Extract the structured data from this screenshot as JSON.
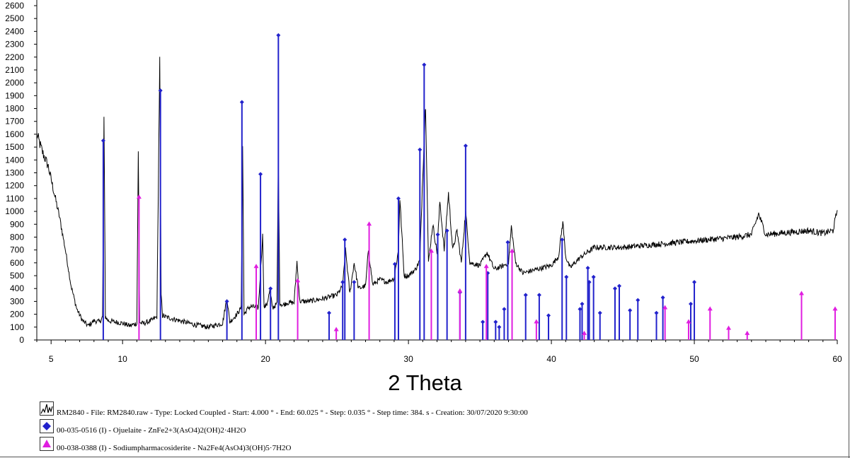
{
  "chart_data": {
    "type": "line",
    "xlabel": "2 Theta",
    "ylabel": "",
    "xlim": [
      4,
      60
    ],
    "ylim": [
      0,
      2600
    ],
    "x_ticks": [
      5,
      10,
      20,
      30,
      40,
      50,
      60
    ],
    "y_ticks": [
      0,
      100,
      200,
      300,
      400,
      500,
      600,
      700,
      800,
      900,
      1000,
      1100,
      1200,
      1300,
      1400,
      1500,
      1600,
      1700,
      1800,
      1900,
      2000,
      2100,
      2200,
      2300,
      2400,
      2500,
      2600
    ],
    "legend_placement": "bottom",
    "series": [
      {
        "name": "RM2840 - File: RM2840.raw - Type: Locked Coupled - Start: 4.000 ° - End: 60.025 ° - Step: 0.035 ° - Step time: 384. s - Creation: 30/07/2020 9:30:00",
        "color": "#000000",
        "style": "line",
        "x": [
          4.0,
          4.4,
          4.8,
          5.2,
          5.6,
          6.0,
          6.4,
          6.8,
          7.2,
          7.6,
          8.0,
          8.4,
          8.6,
          8.7,
          8.8,
          9.0,
          9.5,
          10.0,
          10.5,
          11.0,
          11.1,
          11.2,
          11.3,
          11.5,
          12.0,
          12.4,
          12.6,
          12.7,
          12.8,
          13.0,
          14.0,
          15.0,
          16.0,
          17.0,
          17.3,
          17.5,
          18.0,
          18.3,
          18.4,
          18.5,
          18.8,
          19.0,
          19.5,
          19.8,
          19.9,
          20.1,
          20.3,
          20.5,
          20.8,
          20.9,
          21.0,
          21.2,
          21.5,
          22.0,
          22.2,
          22.4,
          23.0,
          24.0,
          25.0,
          25.4,
          25.6,
          25.9,
          26.2,
          26.5,
          27.0,
          27.2,
          27.5,
          28.0,
          28.5,
          29.0,
          29.3,
          29.4,
          29.7,
          30.0,
          30.5,
          30.8,
          31.0,
          31.2,
          31.4,
          31.7,
          32.0,
          32.2,
          32.5,
          32.8,
          33.1,
          33.4,
          33.7,
          34.0,
          34.3,
          35.0,
          35.5,
          36.0,
          36.5,
          37.0,
          37.2,
          37.5,
          38.0,
          39.0,
          40.0,
          40.5,
          40.8,
          41.0,
          41.3,
          42.0,
          43.0,
          44.0,
          45.0,
          46.0,
          47.0,
          48.0,
          49.0,
          50.0,
          51.0,
          52.0,
          53.0,
          54.0,
          54.5,
          55.0,
          56.0,
          57.0,
          58.0,
          59.0,
          59.7,
          60.0
        ],
        "y": [
          1600,
          1460,
          1350,
          1150,
          950,
          700,
          420,
          240,
          150,
          110,
          150,
          140,
          180,
          1720,
          180,
          150,
          140,
          130,
          110,
          130,
          1450,
          140,
          130,
          130,
          150,
          180,
          2160,
          350,
          190,
          180,
          150,
          120,
          100,
          130,
          330,
          140,
          200,
          250,
          1520,
          200,
          250,
          260,
          250,
          810,
          250,
          280,
          380,
          250,
          280,
          1420,
          290,
          270,
          290,
          290,
          610,
          300,
          300,
          320,
          350,
          420,
          700,
          360,
          600,
          400,
          420,
          700,
          430,
          470,
          450,
          480,
          700,
          1100,
          500,
          500,
          550,
          620,
          1290,
          1850,
          600,
          900,
          680,
          1080,
          700,
          1140,
          700,
          850,
          600,
          1000,
          600,
          580,
          680,
          550,
          570,
          600,
          880,
          600,
          520,
          550,
          580,
          650,
          920,
          650,
          560,
          640,
          720,
          720,
          720,
          730,
          740,
          750,
          760,
          770,
          780,
          790,
          800,
          820,
          980,
          820,
          830,
          840,
          850,
          830,
          850,
          1010
        ]
      },
      {
        "name": "00-035-0516 (I) - Ojuelaite - ZnFe2+3(AsO4)2(OH)2·4H2O",
        "color": "#2222cc",
        "style": "stick",
        "marker": "diamond",
        "x": [
          8.65,
          12.65,
          17.3,
          18.35,
          19.65,
          20.35,
          20.9,
          24.45,
          25.4,
          25.55,
          26.2,
          29.05,
          29.3,
          30.8,
          31.1,
          32.05,
          32.7,
          33.6,
          34.0,
          35.2,
          35.55,
          36.1,
          36.35,
          36.7,
          36.95,
          38.2,
          39.15,
          39.8,
          40.75,
          41.05,
          42.0,
          42.15,
          42.55,
          42.65,
          42.95,
          43.4,
          44.45,
          44.75,
          45.5,
          46.05,
          47.35,
          47.8,
          49.75,
          50.0
        ],
        "y": [
          1550,
          1940,
          300,
          1850,
          1290,
          400,
          2370,
          210,
          450,
          780,
          450,
          590,
          1100,
          1480,
          2140,
          820,
          850,
          370,
          1510,
          140,
          520,
          140,
          100,
          240,
          760,
          350,
          350,
          190,
          780,
          490,
          240,
          280,
          560,
          450,
          490,
          210,
          400,
          420,
          230,
          310,
          210,
          330,
          280,
          450
        ]
      },
      {
        "name": "00-038-0388 (I) - Sodiumpharmacosiderite - Na2Fe4(AsO4)3(OH)5·7H2O",
        "color": "#e01ee0",
        "style": "stick",
        "marker": "triangle",
        "x": [
          11.15,
          19.35,
          22.25,
          24.95,
          27.25,
          31.6,
          33.6,
          35.45,
          37.25,
          38.95,
          42.3,
          47.95,
          49.6,
          51.1,
          52.4,
          53.7,
          57.5,
          59.85
        ],
        "y": [
          1110,
          570,
          460,
          80,
          900,
          690,
          380,
          570,
          690,
          140,
          50,
          250,
          140,
          240,
          90,
          50,
          360,
          240
        ]
      }
    ]
  }
}
